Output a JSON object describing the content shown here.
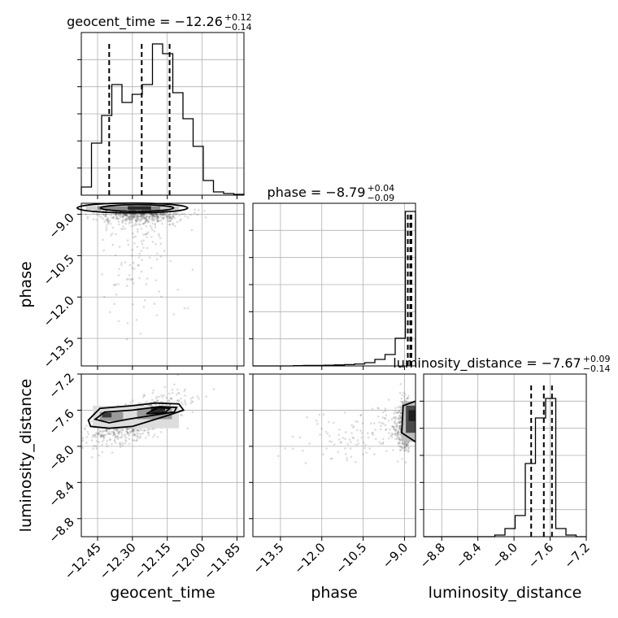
{
  "chart_data": {
    "type": "scatter",
    "subtype": "corner-plot",
    "parameters": [
      {
        "name": "geocent_time",
        "median": "−12.26",
        "plus": "+0.12",
        "minus": "−0.14",
        "label": "geocent_time",
        "range": [
          -12.52,
          -11.82
        ],
        "ticks": [
          "−12.45",
          "−12.30",
          "−12.15",
          "−12.00",
          "−11.85"
        ],
        "tick_values": [
          -12.45,
          -12.3,
          -12.15,
          -12.0,
          -11.85
        ],
        "quantiles": [
          -12.4,
          -12.26,
          -12.14
        ]
      },
      {
        "name": "phase",
        "median": "−8.79",
        "plus": "+0.04",
        "minus": "−0.09",
        "label": "phase",
        "range": [
          -14.5,
          -8.6
        ],
        "ticks": [
          "−13.5",
          "−12.0",
          "−10.5",
          "−9.0"
        ],
        "tick_values": [
          -13.5,
          -12.0,
          -10.5,
          -9.0
        ],
        "quantiles": [
          -8.88,
          -8.79,
          -8.75
        ]
      },
      {
        "name": "luminosity_distance",
        "median": "−7.67",
        "plus": "+0.09",
        "minus": "−0.14",
        "label": "luminosity_distance",
        "range": [
          -9.0,
          -7.2
        ],
        "ticks": [
          "−8.8",
          "−8.4",
          "−8.0",
          "−7.6",
          "−7.2"
        ],
        "tick_values": [
          -8.8,
          -8.4,
          -8.0,
          -7.6,
          -7.2
        ],
        "quantiles": [
          -7.81,
          -7.67,
          -7.58
        ]
      }
    ],
    "y_tick_labels": {
      "phase": [
        "−9.0",
        "−10.5",
        "−12.0",
        "−13.5"
      ],
      "luminosity_distance": [
        "−7.2",
        "−7.6",
        "−8.0",
        "−8.4",
        "−8.8"
      ]
    },
    "histograms": {
      "geocent_time": [
        0.05,
        0.32,
        0.49,
        0.68,
        0.57,
        0.62,
        0.68,
        0.93,
        0.87,
        0.63,
        0.47,
        0.3,
        0.09,
        0.02,
        0.01,
        0.005
      ],
      "phase": [
        0.0,
        0.0,
        0.0,
        0.0,
        0.002,
        0.003,
        0.003,
        0.004,
        0.006,
        0.008,
        0.012,
        0.02,
        0.04,
        0.07,
        0.17,
        0.95
      ],
      "luminosity_distance": [
        0.0,
        0.0,
        0.0,
        0.0,
        0.0,
        0.0,
        0.0,
        0.01,
        0.05,
        0.13,
        0.45,
        0.73,
        0.85,
        0.05,
        0.01,
        0.0
      ]
    },
    "grid": true
  }
}
